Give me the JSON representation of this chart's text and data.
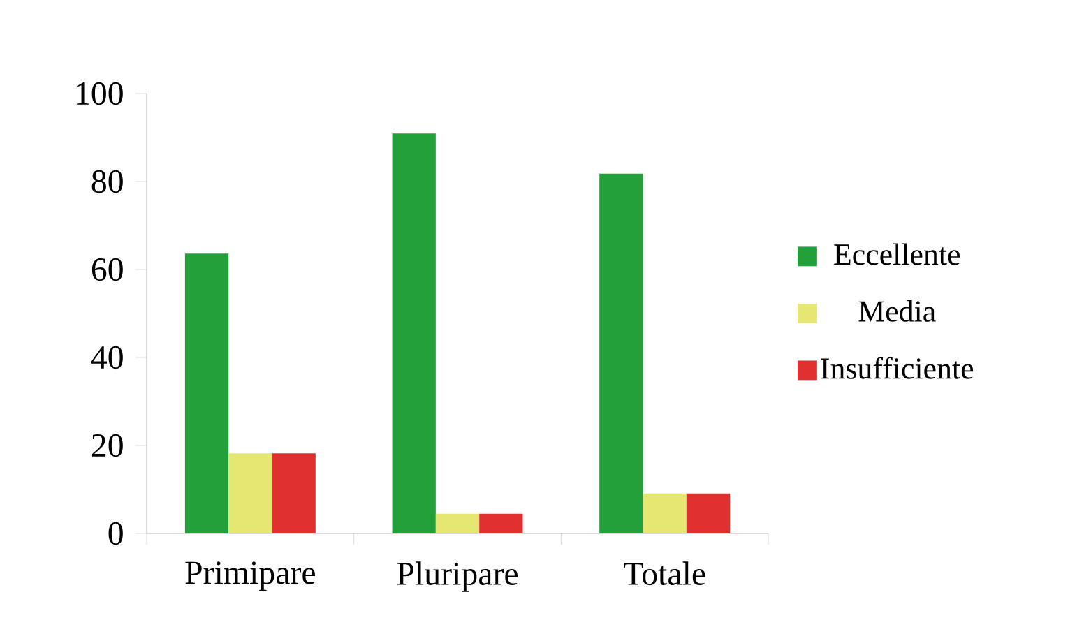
{
  "chart_data": {
    "type": "bar",
    "categories": [
      "Primipare",
      "Pluripare",
      "Totale"
    ],
    "series": [
      {
        "name": "Eccellente",
        "color": "#23a03a",
        "values": [
          63.6,
          90.9,
          81.8
        ]
      },
      {
        "name": "Media",
        "color": "#e6e673",
        "values": [
          18.2,
          4.5,
          9.1
        ]
      },
      {
        "name": "Insufficiente",
        "color": "#e03030",
        "values": [
          18.2,
          4.5,
          9.1
        ]
      }
    ],
    "ylim": [
      0,
      100
    ],
    "yticks": [
      0,
      20,
      40,
      60,
      80,
      100
    ],
    "grid": false,
    "legend": "right"
  }
}
